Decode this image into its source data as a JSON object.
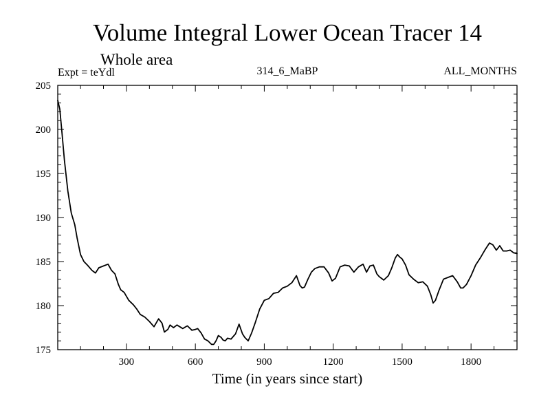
{
  "chart_data": {
    "type": "line",
    "title": "Volume Integral Lower Ocean Tracer 14",
    "subtitle": "Whole area",
    "expt_label": "Expt = teYdl",
    "run_label": "314_6_MaBP",
    "months_label": "ALL_MONTHS",
    "xlabel": "Time (in years since start)",
    "ylabel": "",
    "xlim": [
      1,
      2000
    ],
    "ylim": [
      175,
      205
    ],
    "xticks": [
      300,
      600,
      900,
      1200,
      1500,
      1800
    ],
    "xtick_labels": [
      "300",
      "600",
      "900",
      "1200",
      "1500",
      "1800"
    ],
    "yticks": [
      175,
      180,
      185,
      190,
      195,
      200,
      205
    ],
    "ytick_labels": [
      "175",
      "180",
      "185",
      "190",
      "195",
      "200",
      "205"
    ],
    "line_color": "#000000",
    "series": [
      {
        "name": "teYdl",
        "x": [
          1,
          10,
          20,
          30,
          45,
          60,
          75,
          85,
          100,
          115,
          130,
          150,
          165,
          180,
          200,
          220,
          235,
          250,
          265,
          275,
          290,
          310,
          330,
          345,
          360,
          380,
          400,
          420,
          440,
          455,
          465,
          480,
          490,
          505,
          520,
          545,
          565,
          585,
          600,
          610,
          625,
          640,
          655,
          670,
          680,
          690,
          700,
          712,
          720,
          730,
          740,
          755,
          775,
          790,
          805,
          815,
          830,
          845,
          860,
          880,
          900,
          920,
          940,
          960,
          980,
          1000,
          1020,
          1040,
          1055,
          1065,
          1075,
          1090,
          1105,
          1120,
          1140,
          1160,
          1180,
          1195,
          1210,
          1230,
          1250,
          1270,
          1290,
          1310,
          1330,
          1345,
          1360,
          1375,
          1390,
          1400,
          1420,
          1440,
          1455,
          1470,
          1480,
          1490,
          1500,
          1515,
          1530,
          1550,
          1570,
          1590,
          1610,
          1625,
          1635,
          1645,
          1660,
          1680,
          1700,
          1720,
          1740,
          1755,
          1765,
          1780,
          1800,
          1820,
          1840,
          1860,
          1880,
          1895,
          1910,
          1925,
          1940,
          1955,
          1970,
          1985,
          2000
        ],
        "values": [
          203.3,
          202.3,
          199.5,
          196.5,
          193.0,
          190.5,
          189.2,
          187.7,
          185.8,
          185.0,
          184.6,
          184.0,
          183.7,
          184.3,
          184.5,
          184.7,
          184.0,
          183.6,
          182.4,
          181.8,
          181.5,
          180.6,
          180.1,
          179.6,
          179.0,
          178.7,
          178.2,
          177.6,
          178.5,
          178.0,
          177.0,
          177.3,
          177.8,
          177.5,
          177.8,
          177.4,
          177.7,
          177.2,
          177.3,
          177.4,
          176.9,
          176.2,
          176.0,
          175.6,
          175.6,
          176.0,
          176.6,
          176.4,
          176.1,
          176.0,
          176.3,
          176.2,
          176.8,
          177.9,
          176.8,
          176.4,
          176.0,
          176.9,
          178.0,
          179.6,
          180.6,
          180.8,
          181.4,
          181.5,
          182.0,
          182.2,
          182.6,
          183.4,
          182.3,
          182.0,
          182.1,
          183.0,
          183.8,
          184.2,
          184.4,
          184.4,
          183.7,
          182.8,
          183.1,
          184.4,
          184.6,
          184.5,
          183.8,
          184.4,
          184.7,
          183.8,
          184.5,
          184.6,
          183.6,
          183.3,
          182.9,
          183.4,
          184.3,
          185.4,
          185.8,
          185.5,
          185.3,
          184.6,
          183.5,
          183.0,
          182.6,
          182.7,
          182.2,
          181.2,
          180.3,
          180.6,
          181.7,
          183.0,
          183.2,
          183.4,
          182.7,
          182.0,
          182.0,
          182.4,
          183.4,
          184.6,
          185.4,
          186.3,
          187.1,
          186.9,
          186.3,
          186.8,
          186.2,
          186.2,
          186.3,
          186.0,
          185.9
        ]
      }
    ]
  }
}
